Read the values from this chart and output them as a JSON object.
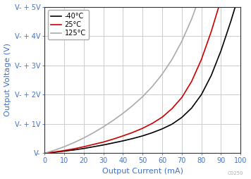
{
  "title": "",
  "xlabel": "Output Current (mA)",
  "ylabel": "Output Voltage (V)",
  "xlim": [
    0,
    100
  ],
  "ylim": [
    0,
    5
  ],
  "ytick_labels": [
    "V-",
    "V- + 1V",
    "V- + 2V",
    "V- + 3V",
    "V- + 4V",
    "V- + 5V"
  ],
  "ytick_vals": [
    0,
    1,
    2,
    3,
    4,
    5
  ],
  "xtick_vals": [
    0,
    10,
    20,
    30,
    40,
    50,
    60,
    70,
    80,
    90,
    100
  ],
  "grid_color": "#cccccc",
  "background_color": "#ffffff",
  "label_color": "#4472c4",
  "curves": {
    "cold": {
      "label": "-40°C",
      "color": "#000000",
      "x": [
        0,
        5,
        10,
        15,
        20,
        25,
        30,
        35,
        40,
        45,
        50,
        55,
        60,
        65,
        70,
        75,
        80,
        85,
        90,
        95,
        100
      ],
      "y": [
        0,
        0.03,
        0.07,
        0.11,
        0.16,
        0.22,
        0.28,
        0.35,
        0.42,
        0.5,
        0.59,
        0.7,
        0.83,
        0.99,
        1.22,
        1.54,
        2.0,
        2.65,
        3.5,
        4.5,
        5.6
      ]
    },
    "warm": {
      "label": "25°C",
      "color": "#cc0000",
      "x": [
        0,
        5,
        10,
        15,
        20,
        25,
        30,
        35,
        40,
        45,
        50,
        55,
        60,
        65,
        70,
        75,
        80,
        85,
        90,
        95,
        100
      ],
      "y": [
        0,
        0.04,
        0.09,
        0.15,
        0.22,
        0.3,
        0.38,
        0.48,
        0.59,
        0.71,
        0.85,
        1.02,
        1.23,
        1.52,
        1.9,
        2.45,
        3.2,
        4.15,
        5.25,
        6.5,
        7.8
      ]
    },
    "hot": {
      "label": "125°C",
      "color": "#aaaaaa",
      "x": [
        0,
        5,
        10,
        15,
        20,
        25,
        30,
        35,
        40,
        45,
        50,
        55,
        60,
        65,
        70,
        75,
        80,
        85,
        90,
        95,
        100
      ],
      "y": [
        0,
        0.1,
        0.22,
        0.36,
        0.52,
        0.7,
        0.9,
        1.12,
        1.36,
        1.63,
        1.93,
        2.28,
        2.7,
        3.2,
        3.82,
        4.58,
        5.5,
        6.6,
        7.9,
        9.4,
        11.0
      ]
    }
  },
  "legend_loc": "upper left",
  "linewidth": 1.2,
  "axis_label_fontsize": 8,
  "tick_fontsize": 7,
  "legend_fontsize": 7
}
